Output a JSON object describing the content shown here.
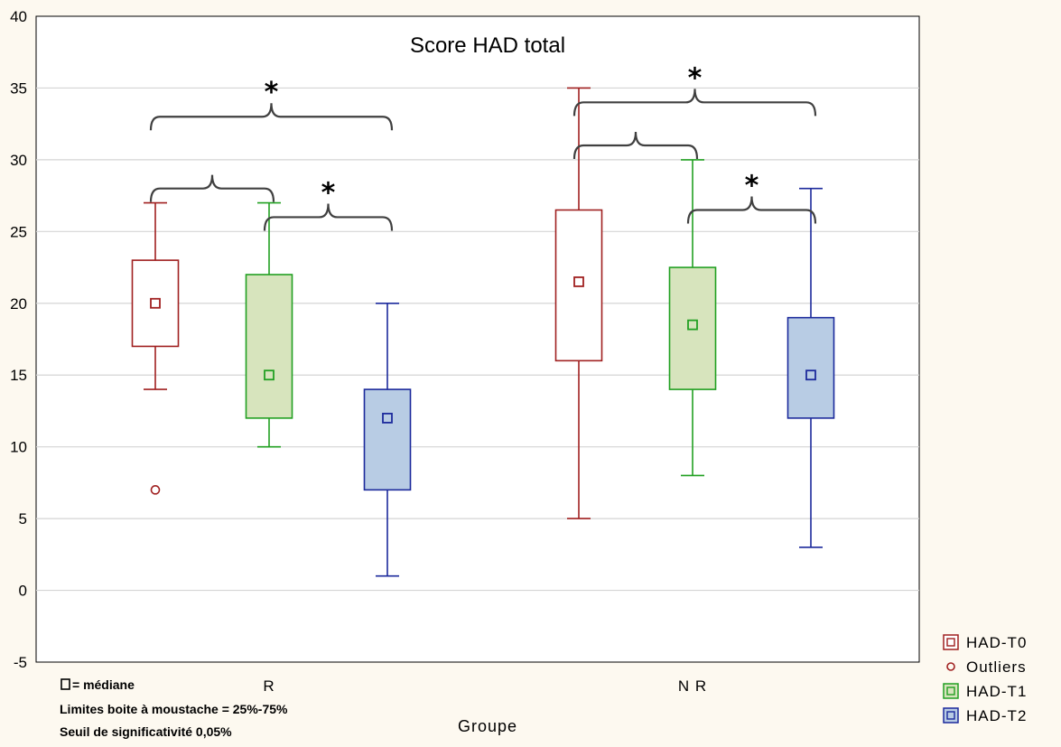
{
  "chart_data": {
    "type": "boxplot",
    "title": "Score HAD total",
    "xlabel": "Groupe",
    "ylabel": "",
    "ylim": [
      -5,
      40
    ],
    "yticks": [
      -5,
      0,
      5,
      10,
      15,
      20,
      25,
      30,
      35,
      40
    ],
    "grid": "horizontal",
    "categories": [
      "R",
      "N R"
    ],
    "series": [
      {
        "name": "HAD-T0",
        "color": "#a02020",
        "fill": "#ffffff",
        "boxes": [
          {
            "category": "R",
            "median": 20,
            "q1": 17,
            "q3": 23,
            "min": 14,
            "max": 27,
            "outliers": [
              7
            ]
          },
          {
            "category": "N R",
            "median": 21.5,
            "q1": 16,
            "q3": 26.5,
            "min": 5,
            "max": 35,
            "outliers": []
          }
        ]
      },
      {
        "name": "HAD-T1",
        "color": "#22a022",
        "fill": "#d7e4bd",
        "boxes": [
          {
            "category": "R",
            "median": 15,
            "q1": 12,
            "q3": 22,
            "min": 10,
            "max": 27,
            "outliers": []
          },
          {
            "category": "N R",
            "median": 18.5,
            "q1": 14,
            "q3": 22.5,
            "min": 8,
            "max": 30,
            "outliers": []
          }
        ]
      },
      {
        "name": "HAD-T2",
        "color": "#1c2a9c",
        "fill": "#b8cce4",
        "boxes": [
          {
            "category": "R",
            "median": 12,
            "q1": 7,
            "q3": 14,
            "min": 1,
            "max": 20,
            "outliers": []
          },
          {
            "category": "N R",
            "median": 15,
            "q1": 12,
            "q3": 19,
            "min": 3,
            "max": 28,
            "outliers": []
          }
        ]
      }
    ],
    "legend": {
      "placement": "bottom-right",
      "entries": [
        {
          "label": "HAD-T0",
          "symbol": "square-box",
          "color": "#a02020",
          "fill": "#ffffff"
        },
        {
          "label": "Outliers",
          "symbol": "circle",
          "color": "#a02020"
        },
        {
          "label": "HAD-T1",
          "symbol": "square-box",
          "color": "#22a022",
          "fill": "#d7e4bd"
        },
        {
          "label": "HAD-T2",
          "symbol": "square-box",
          "color": "#1c2a9c",
          "fill": "#b8cce4"
        }
      ]
    },
    "comparisons": [
      {
        "category": "R",
        "from": "HAD-T0",
        "to": "HAD-T1",
        "y": 28,
        "significant": false
      },
      {
        "category": "R",
        "from": "HAD-T1",
        "to": "HAD-T2",
        "y": 26,
        "significant": true
      },
      {
        "category": "R",
        "from": "HAD-T0",
        "to": "HAD-T2",
        "y": 33,
        "significant": true
      },
      {
        "category": "N R",
        "from": "HAD-T0",
        "to": "HAD-T1",
        "y": 31,
        "significant": false
      },
      {
        "category": "N R",
        "from": "HAD-T1",
        "to": "HAD-T2",
        "y": 26.5,
        "significant": true
      },
      {
        "category": "N R",
        "from": "HAD-T0",
        "to": "HAD-T2",
        "y": 34,
        "significant": true
      }
    ],
    "significance_mark": "*",
    "notes": [
      "= médiane",
      "Limites boite à moustache = 25%-75%",
      "Seuil de significativité 0,05%"
    ]
  }
}
